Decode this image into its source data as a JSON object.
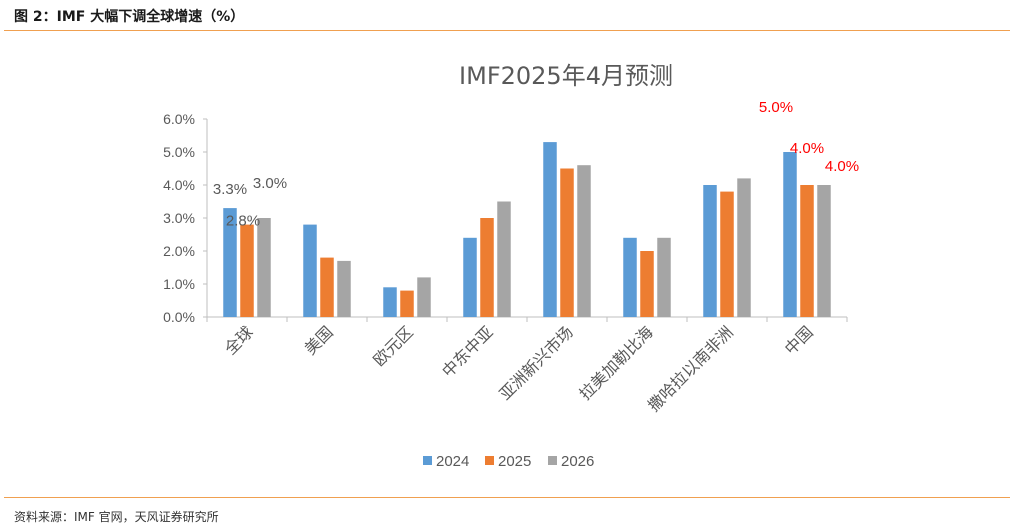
{
  "header": {
    "figure_title": "图 2：IMF 大幅下调全球增速（%）"
  },
  "footer": {
    "source": "资料来源：IMF 官网，天风证券研究所"
  },
  "chart_data": {
    "type": "bar",
    "title": "IMF2025年4月预测",
    "categories": [
      "全球",
      "美国",
      "欧元区",
      "中东中亚",
      "亚洲新兴市场",
      "拉美加勒比海",
      "撒哈拉以南非洲",
      "中国"
    ],
    "series": [
      {
        "name": "2024",
        "color": "#5b9bd5",
        "values": [
          3.3,
          2.8,
          0.9,
          2.4,
          5.3,
          2.4,
          4.0,
          5.0
        ]
      },
      {
        "name": "2025",
        "color": "#ed7d31",
        "values": [
          2.8,
          1.8,
          0.8,
          3.0,
          4.5,
          2.0,
          3.8,
          4.0
        ]
      },
      {
        "name": "2026",
        "color": "#a5a5a5",
        "values": [
          3.0,
          1.7,
          1.2,
          3.5,
          4.6,
          2.4,
          4.2,
          4.0
        ]
      }
    ],
    "ylim": [
      0,
      6
    ],
    "yticks": [
      "0.0%",
      "1.0%",
      "2.0%",
      "3.0%",
      "4.0%",
      "5.0%",
      "6.0%"
    ],
    "grid": false,
    "legend_position": "bottom",
    "annotations": [
      {
        "text": "3.3%",
        "category": 0,
        "series": 0,
        "color": "#595959"
      },
      {
        "text": "2.8%",
        "category": 0,
        "series": 1,
        "color": "#595959"
      },
      {
        "text": "3.0%",
        "category": 0,
        "series": 2,
        "color": "#595959"
      },
      {
        "text": "5.0%",
        "category": 7,
        "series": 0,
        "color": "#ff0000"
      },
      {
        "text": "4.0%",
        "category": 7,
        "series": 1,
        "color": "#ff0000"
      },
      {
        "text": "4.0%",
        "category": 7,
        "series": 2,
        "color": "#ff0000"
      }
    ]
  }
}
